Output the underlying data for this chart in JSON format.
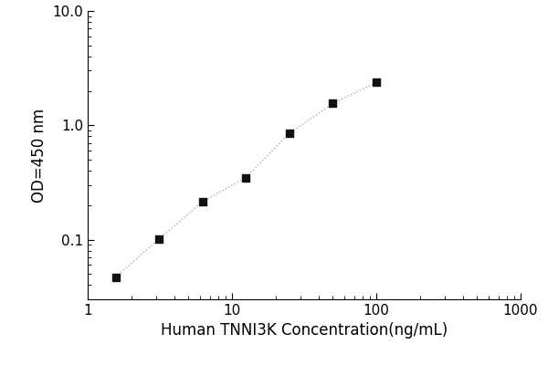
{
  "x": [
    1.563,
    3.125,
    6.25,
    12.5,
    25.0,
    50.0,
    100.0
  ],
  "y": [
    0.047,
    0.101,
    0.214,
    0.349,
    0.852,
    1.55,
    2.37
  ],
  "xlabel": "Human TNNI3K Concentration(ng/mL)",
  "ylabel": "OD=450 nm",
  "xlim": [
    1,
    1000
  ],
  "ylim": [
    0.03,
    10
  ],
  "xticks": [
    1,
    10,
    100,
    1000
  ],
  "yticks": [
    0.1,
    1,
    10
  ],
  "line_color": "#aaaaaa",
  "marker_color": "#111111",
  "marker_size": 6,
  "linewidth": 1.0,
  "linestyle": ":",
  "background_color": "#ffffff",
  "xlabel_fontsize": 12,
  "ylabel_fontsize": 12,
  "tick_fontsize": 11
}
